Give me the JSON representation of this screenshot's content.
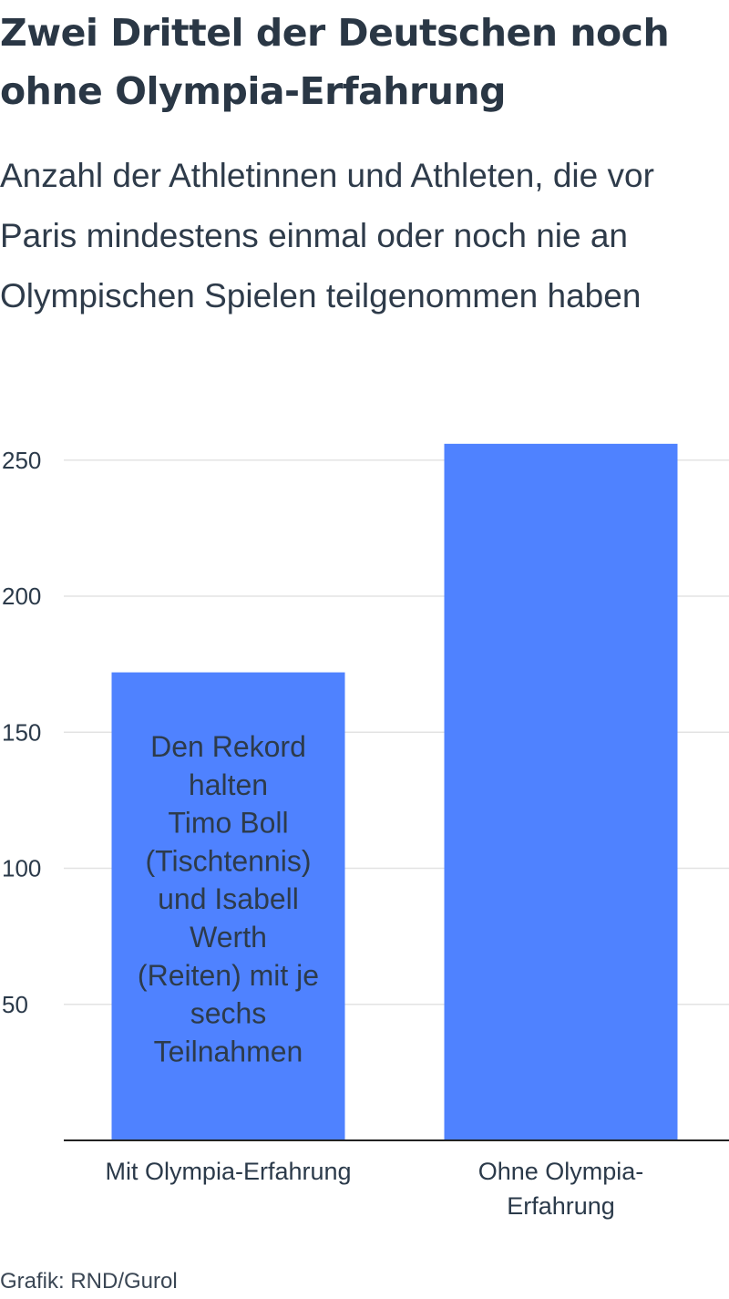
{
  "title": "Zwei Drittel der Deutschen noch ohne Olympia-Erfahrung",
  "subtitle": "Anzahl der Athletinnen und Athleten, die vor Paris mindestens einmal oder noch nie an Olympischen Spielen teilgenommen haben",
  "credit": "Grafik: RND/Gurol",
  "colors": {
    "bar": "#4f82ff",
    "text": "#2b3a4a",
    "grid": "#e3e3e3",
    "axis": "#222222"
  },
  "chart_data": {
    "type": "bar",
    "categories": [
      "Mit Olympia-Erfahrung",
      "Ohne Olympia-Erfahrung"
    ],
    "category_lines": [
      [
        "Mit Olympia-Erfahrung"
      ],
      [
        "Ohne Olympia-",
        "Erfahrung"
      ]
    ],
    "values": [
      172,
      256
    ],
    "ylim": [
      0,
      260
    ],
    "yticks": [
      50,
      100,
      150,
      200,
      250
    ],
    "grid": true,
    "annotation": {
      "category": "Mit Olympia-Erfahrung",
      "lines": [
        "Den Rekord",
        "halten",
        "Timo Boll",
        "(Tischtennis)",
        "und Isabell",
        "Werth",
        "(Reiten) mit je",
        "sechs",
        "Teilnahmen"
      ]
    }
  }
}
